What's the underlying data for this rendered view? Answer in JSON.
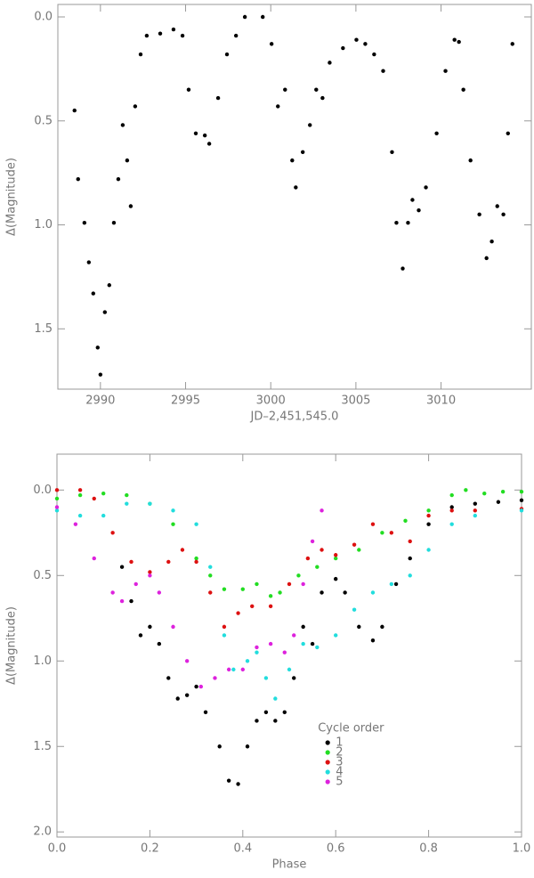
{
  "chart_data": [
    {
      "type": "scatter",
      "x_label": "JD–2,451,545.0",
      "y_label": "Δ(Magnitude)",
      "y_inverted": true,
      "color": "#000000",
      "xlim": [
        2987.5,
        3015.3
      ],
      "xticks": [
        2990,
        2995,
        3000,
        3005,
        3010
      ],
      "ylim": [
        -0.06,
        1.79
      ],
      "yticks": [
        {
          "value": 0,
          "label": "0.0"
        },
        0.5,
        {
          "value": 1,
          "label": "1.0"
        },
        1.5
      ],
      "x": [
        2988.48,
        2988.69,
        2989.06,
        2989.32,
        2989.58,
        2989.84,
        2990.0,
        2990.26,
        2990.52,
        2990.79,
        2991.05,
        2991.31,
        2991.57,
        2991.78,
        2992.04,
        2992.36,
        2992.72,
        2993.51,
        2994.29,
        2994.82,
        2995.18,
        2995.6,
        2996.13,
        2996.39,
        2996.91,
        2997.43,
        2997.96,
        2998.48,
        2999.53,
        3000.05,
        3000.42,
        3000.84,
        3001.26,
        3001.47,
        3001.88,
        3002.3,
        3002.67,
        3003.04,
        3003.46,
        3004.24,
        3005.03,
        3005.55,
        3006.07,
        3006.6,
        3007.12,
        3007.38,
        3007.75,
        3008.06,
        3008.32,
        3008.69,
        3009.11,
        3009.74,
        3010.26,
        3010.79,
        3011.05,
        3011.31,
        3011.73,
        3012.25,
        3012.67,
        3012.98,
        3013.3,
        3013.66,
        3013.93,
        3014.19
      ],
      "values": [
        0.45,
        0.78,
        0.99,
        1.18,
        1.33,
        1.59,
        1.72,
        1.42,
        1.29,
        0.99,
        0.78,
        0.52,
        0.69,
        0.91,
        0.43,
        0.18,
        0.09,
        0.08,
        0.06,
        0.09,
        0.35,
        0.56,
        0.57,
        0.61,
        0.39,
        0.18,
        0.09,
        0.0,
        0.0,
        0.13,
        0.43,
        0.35,
        0.69,
        0.82,
        0.65,
        0.52,
        0.35,
        0.39,
        0.22,
        0.15,
        0.11,
        0.13,
        0.18,
        0.26,
        0.65,
        0.99,
        1.21,
        0.99,
        0.88,
        0.93,
        0.82,
        0.56,
        0.26,
        0.11,
        0.12,
        0.35,
        0.69,
        0.95,
        1.16,
        1.08,
        0.91,
        0.95,
        0.56,
        0.13
      ]
    },
    {
      "type": "scatter",
      "x_label": "Phase",
      "y_label": "Δ(Magnitude)",
      "y_inverted": true,
      "xlim": [
        0,
        1
      ],
      "xticks": [
        {
          "value": 0,
          "label": "0.0"
        },
        0.2,
        0.4,
        0.6,
        0.8,
        {
          "value": 1,
          "label": "1.0"
        }
      ],
      "ylim": [
        -0.21,
        2.03
      ],
      "yticks": [
        {
          "value": 0,
          "label": "0.0"
        },
        0.5,
        {
          "value": 1,
          "label": "1.0"
        },
        1.5,
        {
          "value": 2,
          "label": "2.0"
        }
      ],
      "legend": {
        "title": "Cycle order",
        "position": "lower right"
      },
      "series": [
        {
          "name": "1",
          "color": "#000000",
          "x": [
            0.14,
            0.16,
            0.18,
            0.2,
            0.22,
            0.24,
            0.26,
            0.28,
            0.3,
            0.32,
            0.35,
            0.37,
            0.39,
            0.41,
            0.43,
            0.45,
            0.47,
            0.49,
            0.51,
            0.53,
            0.55,
            0.57,
            0.6,
            0.62,
            0.65,
            0.68,
            0.7,
            0.73,
            0.76,
            0.8,
            0.85,
            0.9,
            0.95,
            1.0
          ],
          "values": [
            0.45,
            0.65,
            0.85,
            0.8,
            0.9,
            1.1,
            1.22,
            1.2,
            1.15,
            1.3,
            1.5,
            1.7,
            1.72,
            1.5,
            1.35,
            1.3,
            1.35,
            1.3,
            1.1,
            0.8,
            0.9,
            0.6,
            0.52,
            0.6,
            0.8,
            0.88,
            0.8,
            0.55,
            0.4,
            0.2,
            0.1,
            0.08,
            0.07,
            0.06
          ]
        },
        {
          "name": "2",
          "color": "#22dd22",
          "x": [
            0,
            0.05,
            0.1,
            0.15,
            0.2,
            0.25,
            0.3,
            0.33,
            0.36,
            0.4,
            0.43,
            0.46,
            0.48,
            0.52,
            0.56,
            0.6,
            0.65,
            0.7,
            0.75,
            0.8,
            0.85,
            0.88,
            0.92,
            0.96,
            1.0
          ],
          "values": [
            0.05,
            0.03,
            0.02,
            0.03,
            0.08,
            0.2,
            0.4,
            0.5,
            0.58,
            0.58,
            0.55,
            0.62,
            0.6,
            0.5,
            0.45,
            0.4,
            0.35,
            0.25,
            0.18,
            0.12,
            0.03,
            0.0,
            0.02,
            0.01,
            0.01
          ]
        },
        {
          "name": "3",
          "color": "#dd1111",
          "x": [
            0,
            0.05,
            0.08,
            0.12,
            0.16,
            0.2,
            0.24,
            0.27,
            0.3,
            0.33,
            0.36,
            0.39,
            0.42,
            0.46,
            0.5,
            0.54,
            0.57,
            0.6,
            0.64,
            0.68,
            0.72,
            0.76,
            0.8,
            0.85,
            0.9,
            1.0
          ],
          "values": [
            0.0,
            0.0,
            0.05,
            0.25,
            0.42,
            0.48,
            0.42,
            0.35,
            0.42,
            0.6,
            0.8,
            0.72,
            0.68,
            0.68,
            0.55,
            0.4,
            0.35,
            0.38,
            0.32,
            0.2,
            0.25,
            0.3,
            0.15,
            0.12,
            0.12,
            0.11
          ]
        },
        {
          "name": "4",
          "color": "#22dddd",
          "x": [
            0,
            0.05,
            0.1,
            0.15,
            0.2,
            0.25,
            0.3,
            0.33,
            0.36,
            0.38,
            0.41,
            0.43,
            0.45,
            0.47,
            0.5,
            0.53,
            0.56,
            0.6,
            0.64,
            0.68,
            0.72,
            0.76,
            0.8,
            0.85,
            0.9,
            1.0
          ],
          "values": [
            0.12,
            0.15,
            0.15,
            0.08,
            0.08,
            0.12,
            0.2,
            0.45,
            0.85,
            1.05,
            1.0,
            0.95,
            1.1,
            1.22,
            1.05,
            0.9,
            0.92,
            0.85,
            0.7,
            0.6,
            0.55,
            0.5,
            0.35,
            0.2,
            0.15,
            0.12
          ]
        },
        {
          "name": "5",
          "color": "#dd22dd",
          "x": [
            0,
            0.04,
            0.08,
            0.12,
            0.14,
            0.17,
            0.2,
            0.22,
            0.25,
            0.28,
            0.31,
            0.34,
            0.37,
            0.4,
            0.43,
            0.46,
            0.49,
            0.51,
            0.53,
            0.55,
            0.57
          ],
          "values": [
            0.1,
            0.2,
            0.4,
            0.6,
            0.65,
            0.55,
            0.5,
            0.6,
            0.8,
            1.0,
            1.15,
            1.1,
            1.05,
            1.05,
            0.92,
            0.9,
            0.95,
            0.85,
            0.55,
            0.3,
            0.12
          ]
        }
      ]
    }
  ]
}
